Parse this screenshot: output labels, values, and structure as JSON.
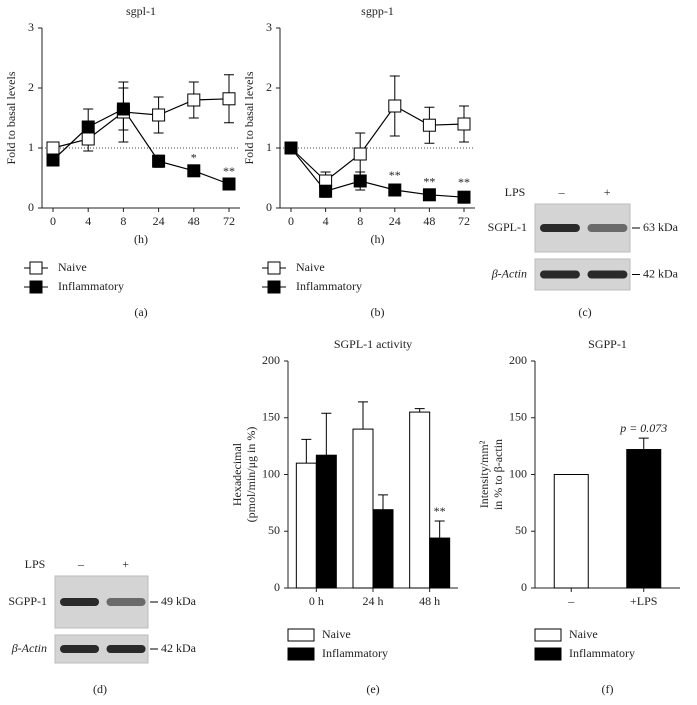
{
  "chart_data": [
    {
      "type": "line",
      "title": "sgpl-1",
      "ylabel": "Fold to basal levels",
      "xlabel": "(h)",
      "label": "(a)",
      "categories": [
        "0",
        "4",
        "8",
        "24",
        "48",
        "72"
      ],
      "ylim": [
        0,
        3
      ],
      "yticks": [
        0,
        1,
        2,
        3
      ],
      "hline": 1,
      "series": [
        {
          "name": "Naive",
          "color": "#ffffff",
          "values": [
            1.0,
            1.15,
            1.6,
            1.55,
            1.8,
            1.82
          ],
          "errors": [
            0.05,
            0.2,
            0.5,
            0.3,
            0.3,
            0.4
          ]
        },
        {
          "name": "Inflammatory",
          "color": "#000000",
          "values": [
            0.8,
            1.35,
            1.65,
            0.78,
            0.62,
            0.4
          ],
          "errors": [
            0.05,
            0.3,
            0.35,
            0.1,
            0.05,
            0.05
          ]
        }
      ],
      "annotations": [
        {
          "text": "*",
          "series": 1,
          "index": 4
        },
        {
          "text": "**",
          "series": 1,
          "index": 5
        }
      ]
    },
    {
      "type": "line",
      "title": "sgpp-1",
      "ylabel": "Fold to basal levels",
      "xlabel": "(h)",
      "label": "(b)",
      "categories": [
        "0",
        "4",
        "8",
        "24",
        "48",
        "72"
      ],
      "ylim": [
        0,
        3
      ],
      "yticks": [
        0,
        1,
        2,
        3
      ],
      "hline": 1,
      "series": [
        {
          "name": "Naive",
          "color": "#ffffff",
          "values": [
            1.0,
            0.45,
            0.9,
            1.7,
            1.38,
            1.4
          ],
          "errors": [
            0.05,
            0.15,
            0.35,
            0.5,
            0.3,
            0.3
          ]
        },
        {
          "name": "Inflammatory",
          "color": "#000000",
          "values": [
            1.0,
            0.28,
            0.45,
            0.3,
            0.22,
            0.18
          ],
          "errors": [
            0.05,
            0.1,
            0.15,
            0.08,
            0.05,
            0.08
          ]
        }
      ],
      "annotations": [
        {
          "text": "**",
          "series": 1,
          "index": 3
        },
        {
          "text": "**",
          "series": 1,
          "index": 4
        },
        {
          "text": "**",
          "series": 1,
          "index": 5
        }
      ]
    },
    {
      "type": "bar",
      "title": "SGPL-1 activity",
      "ylabel": [
        "Hexadecimal",
        "(pmol/min/μg in %)"
      ],
      "label": "(e)",
      "categories": [
        "0 h",
        "24 h",
        "48 h"
      ],
      "ylim": [
        0,
        200
      ],
      "yticks": [
        0,
        50,
        100,
        150,
        200
      ],
      "series": [
        {
          "name": "Naive",
          "color": "#ffffff",
          "values": [
            110,
            140,
            155
          ],
          "errors": [
            21,
            24,
            3
          ]
        },
        {
          "name": "Inflammatory",
          "color": "#000000",
          "values": [
            117,
            69,
            44
          ],
          "errors": [
            37,
            13,
            15
          ]
        }
      ],
      "annotations": [
        {
          "text": "**",
          "series": 1,
          "index": 2
        }
      ]
    },
    {
      "type": "bar",
      "title": "SGPP-1",
      "ylabel": [
        "Intensity/mm²",
        "in % to β-actin"
      ],
      "label": "(f)",
      "categories": [
        "–",
        "+LPS"
      ],
      "ylim": [
        0,
        200
      ],
      "yticks": [
        0,
        50,
        100,
        150,
        200
      ],
      "series": [
        {
          "name": "Naive",
          "color": "#ffffff",
          "values": [
            100,
            null
          ],
          "errors": [
            null,
            null
          ]
        },
        {
          "name": "Inflammatory",
          "color": "#000000",
          "values": [
            null,
            122
          ],
          "errors": [
            null,
            10
          ]
        }
      ],
      "annotations": [
        {
          "text": "p = 0.073",
          "series": 1,
          "index": 1
        }
      ]
    }
  ],
  "blots": [
    {
      "label": "(c)",
      "condition": "LPS",
      "lanes": [
        "–",
        "+"
      ],
      "rows": [
        {
          "name": "SGPL-1",
          "size": "63 kDa"
        },
        {
          "name": "β-Actin",
          "size": "42 kDa"
        }
      ]
    },
    {
      "label": "(d)",
      "condition": "LPS",
      "lanes": [
        "–",
        "+"
      ],
      "rows": [
        {
          "name": "SGPP-1",
          "size": "49 kDa"
        },
        {
          "name": "β-Actin",
          "size": "42 kDa"
        }
      ]
    }
  ]
}
